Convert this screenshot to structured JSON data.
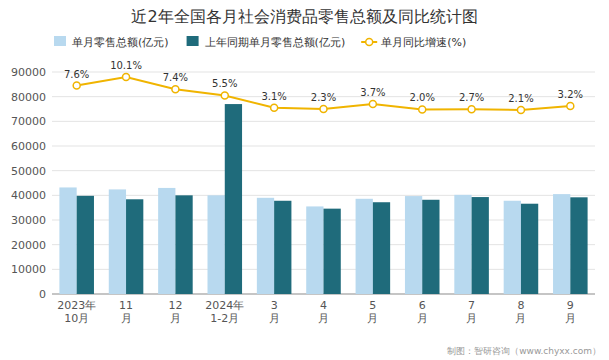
{
  "chart_data": {
    "type": "bar",
    "title": "近2年全国各月社会消费品零售总额及同比统计图",
    "categories": [
      "2023年\n10月",
      "11\n月",
      "12\n月",
      "2024年\n1-2月",
      "3\n月",
      "4\n月",
      "5\n月",
      "6\n月",
      "7\n月",
      "8\n月",
      "9\n月"
    ],
    "series": [
      {
        "name": "单月零售总额(亿元)",
        "type": "bar",
        "color": "#b8d9ef",
        "values": [
          43200,
          42400,
          43000,
          40000,
          39000,
          35500,
          38600,
          39700,
          40200,
          37800,
          40500
        ]
      },
      {
        "name": "上年同期单月零售总额(亿元)",
        "type": "bar",
        "color": "#1f6b7b",
        "values": [
          39800,
          38400,
          40000,
          77000,
          37800,
          34600,
          37200,
          38200,
          39300,
          36600,
          39200
        ]
      },
      {
        "name": "单月同比增速(%)",
        "type": "line",
        "color": "#f0b400",
        "marker": "circle",
        "values": [
          84500,
          88000,
          83000,
          80500,
          75500,
          75000,
          77000,
          74800,
          74900,
          74600,
          76200
        ],
        "annotations": [
          "7.6%",
          "10.1%",
          "7.4%",
          "5.5%",
          "3.1%",
          "2.3%",
          "3.7%",
          "2.0%",
          "2.7%",
          "2.1%",
          "3.2%"
        ]
      }
    ],
    "ylim": [
      0,
      90000
    ],
    "yticks": [
      0,
      10000,
      20000,
      30000,
      40000,
      50000,
      60000,
      70000,
      80000,
      90000
    ],
    "grid": true,
    "legend": "top",
    "footer": "制图：智研咨询（www.chyxx.com）"
  }
}
